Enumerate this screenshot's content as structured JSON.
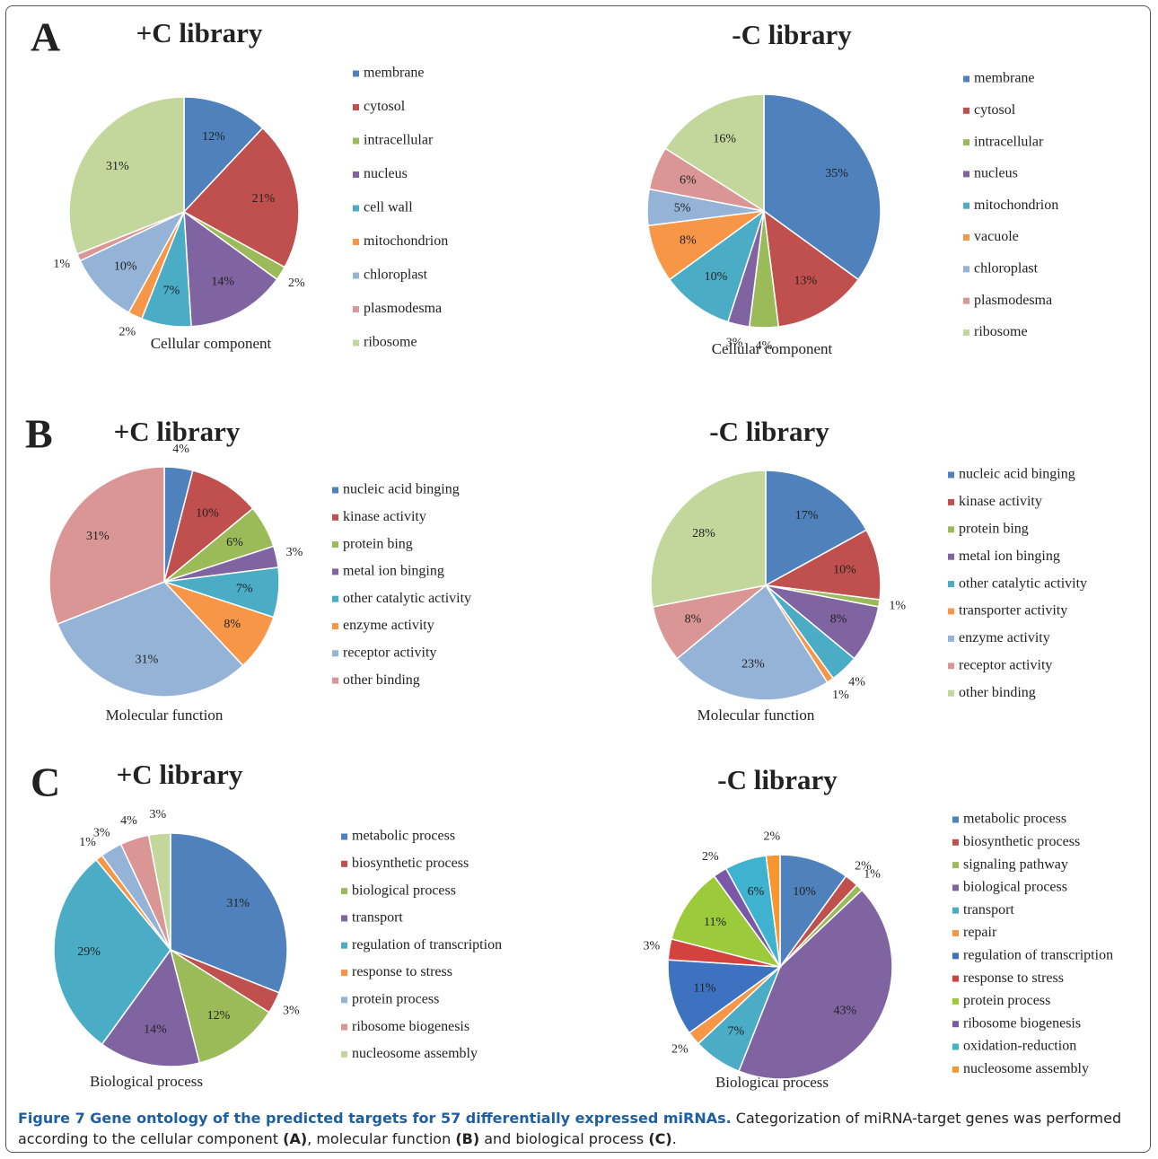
{
  "panels": [
    "A",
    "B",
    "C"
  ],
  "caption": {
    "title": "Figure 7 Gene ontology of the predicted targets for 57 differentially expressed miRNAs.",
    "parts": [
      " Categorization of miRNA-target genes was performed according to the cellular component ",
      "(A)",
      ", molecular function ",
      "(B)",
      " and biological process ",
      "(C)",
      "."
    ]
  },
  "chart_data": [
    {
      "type": "pie",
      "title": "+C library",
      "xlabel": "Cellular component",
      "categories": [
        "membrane",
        "cytosol",
        "intracellular",
        "nucleus",
        "cell wall",
        "mitochondrion",
        "chloroplast",
        "plasmodesma",
        "ribosome"
      ],
      "values": [
        12,
        21,
        2,
        14,
        7,
        2,
        10,
        1,
        31
      ],
      "value_labels": [
        "12%",
        "21%",
        "2%",
        "14%",
        "7%",
        "2%",
        "10%",
        "1%",
        "31%"
      ],
      "colors": [
        "#4f81bd",
        "#c0504d",
        "#9bbb59",
        "#8064a2",
        "#4bacc6",
        "#f79646",
        "#95b3d7",
        "#d99694",
        "#c3d69b"
      ]
    },
    {
      "type": "pie",
      "title": "-C library",
      "xlabel": "Cellular component",
      "categories": [
        "membrane",
        "cytosol",
        "intracellular",
        "nucleus",
        "mitochondrion",
        "vacuole",
        "chloroplast",
        "plasmodesma",
        "ribosome"
      ],
      "values": [
        35,
        13,
        4,
        3,
        10,
        8,
        5,
        6,
        16
      ],
      "value_labels": [
        "35%",
        "13%",
        "4%",
        "3%",
        "10%",
        "8%",
        "5%",
        "6%",
        "16%"
      ],
      "colors": [
        "#4f81bd",
        "#c0504d",
        "#9bbb59",
        "#8064a2",
        "#4bacc6",
        "#f79646",
        "#95b3d7",
        "#d99694",
        "#c3d69b"
      ]
    },
    {
      "type": "pie",
      "title": "+C library",
      "xlabel": "Molecular function",
      "categories": [
        "nucleic acid binging",
        "kinase activity",
        "protein bing",
        "metal ion binging",
        "other catalytic activity",
        "enzyme activity",
        "receptor activity",
        "other binding"
      ],
      "values": [
        4,
        10,
        6,
        3,
        7,
        8,
        31,
        31
      ],
      "value_labels": [
        "4%",
        "10%",
        "6%",
        "3%",
        "7%",
        "8%",
        "31%",
        "31%"
      ],
      "colors": [
        "#4f81bd",
        "#c0504d",
        "#9bbb59",
        "#8064a2",
        "#4bacc6",
        "#f79646",
        "#95b3d7",
        "#d99694"
      ]
    },
    {
      "type": "pie",
      "title": "-C library",
      "xlabel": "Molecular function",
      "categories": [
        "nucleic acid binging",
        "kinase activity",
        "protein bing",
        "metal ion binging",
        "other catalytic activity",
        "transporter activity",
        "enzyme activity",
        "receptor activity",
        "other binding"
      ],
      "values": [
        17,
        10,
        1,
        8,
        4,
        1,
        23,
        8,
        28
      ],
      "value_labels": [
        "17%",
        "10%",
        "1%",
        "8%",
        "4%",
        "1%",
        "23%",
        "8%",
        "28%"
      ],
      "colors": [
        "#4f81bd",
        "#c0504d",
        "#9bbb59",
        "#8064a2",
        "#4bacc6",
        "#f79646",
        "#95b3d7",
        "#d99694",
        "#c3d69b"
      ]
    },
    {
      "type": "pie",
      "title": "+C library",
      "xlabel": "Biological process",
      "categories": [
        "metabolic process",
        "biosynthetic process",
        "biological process",
        "transport",
        "regulation of transcription",
        "response to stress",
        "protein process",
        "ribosome biogenesis",
        "nucleosome assembly"
      ],
      "values": [
        31,
        3,
        12,
        14,
        29,
        1,
        3,
        4,
        3
      ],
      "value_labels": [
        "31%",
        "3%",
        "12%",
        "14%",
        "29%",
        "1%",
        "3%",
        "4%",
        "3%"
      ],
      "colors": [
        "#4f81bd",
        "#c0504d",
        "#9bbb59",
        "#8064a2",
        "#4bacc6",
        "#f79646",
        "#95b3d7",
        "#d99694",
        "#c3d69b"
      ]
    },
    {
      "type": "pie",
      "title": "-C library",
      "xlabel": "Biological process",
      "categories": [
        "metabolic process",
        "biosynthetic process",
        "signaling pathway",
        "biological process",
        "transport",
        "repair",
        "regulation of transcription",
        "response to stress",
        "protein process",
        "ribosome biogenesis",
        "oxidation-reduction",
        "nucleosome assembly"
      ],
      "values": [
        10,
        2,
        1,
        43,
        7,
        2,
        11,
        3,
        11,
        2,
        6,
        2
      ],
      "value_labels": [
        "10%",
        "2%",
        "1%",
        "43%",
        "7%",
        "2%",
        "11%",
        "3%",
        "11%",
        "2%",
        "6%",
        "2%"
      ],
      "colors": [
        "#4f81bd",
        "#c0504d",
        "#9bbb59",
        "#8064a2",
        "#4bacc6",
        "#f79646",
        "#3d72c0",
        "#d3423e",
        "#9bcb3a",
        "#7a57a8",
        "#3fb2cf",
        "#f5962e"
      ]
    }
  ]
}
